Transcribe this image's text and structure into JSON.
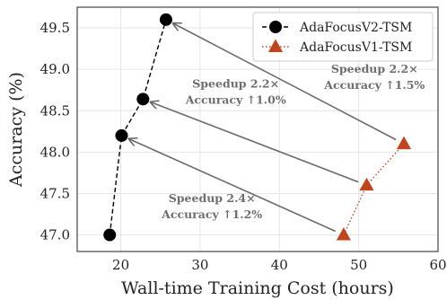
{
  "chart_data": {
    "type": "line",
    "xlabel": "Wall-time Training Cost (hours)",
    "ylabel": "Accuracy (%)",
    "xlim": [
      14.5,
      60
    ],
    "ylim": [
      46.8,
      49.75
    ],
    "xticks": [
      20,
      30,
      40,
      50,
      60
    ],
    "yticks": [
      47.0,
      47.5,
      48.0,
      48.5,
      49.0,
      49.5
    ],
    "xtick_labels": [
      "20",
      "30",
      "40",
      "50",
      "60"
    ],
    "ytick_labels": [
      "47.0",
      "47.5",
      "48.0",
      "48.5",
      "49.0",
      "49.5"
    ],
    "grid": true,
    "legend_position": "top-right",
    "series": [
      {
        "name": "AdaFocusV2-TSM",
        "color": "#000000",
        "marker": "circle",
        "linestyle": "dashed",
        "points": [
          [
            18.6,
            47.0
          ],
          [
            20.1,
            48.2
          ],
          [
            22.8,
            48.64
          ],
          [
            25.7,
            49.6
          ]
        ]
      },
      {
        "name": "AdaFocusV1-TSM",
        "color": "#c0441c",
        "marker": "triangle",
        "linestyle": "dotted",
        "points": [
          [
            48.1,
            47.0
          ],
          [
            51.0,
            47.6
          ],
          [
            55.7,
            48.1
          ]
        ]
      }
    ],
    "arrows": [
      {
        "from": [
          48.1,
          47.0
        ],
        "to": [
          20.1,
          48.2
        ]
      },
      {
        "from": [
          51.0,
          47.6
        ],
        "to": [
          22.8,
          48.64
        ]
      },
      {
        "from": [
          55.7,
          48.1
        ],
        "to": [
          25.7,
          49.6
        ]
      }
    ],
    "annotations": [
      {
        "lines": [
          "Speedup 2.4×",
          "Accuracy ↑1.2%"
        ],
        "x": 31.5,
        "y": 47.3
      },
      {
        "lines": [
          "Speedup 2.2×",
          "Accuracy ↑1.0%"
        ],
        "x": 34.5,
        "y": 48.68
      },
      {
        "lines": [
          "Speedup 2.2×",
          "Accuracy ↑1.5%"
        ],
        "x": 52.0,
        "y": 48.86
      }
    ]
  }
}
